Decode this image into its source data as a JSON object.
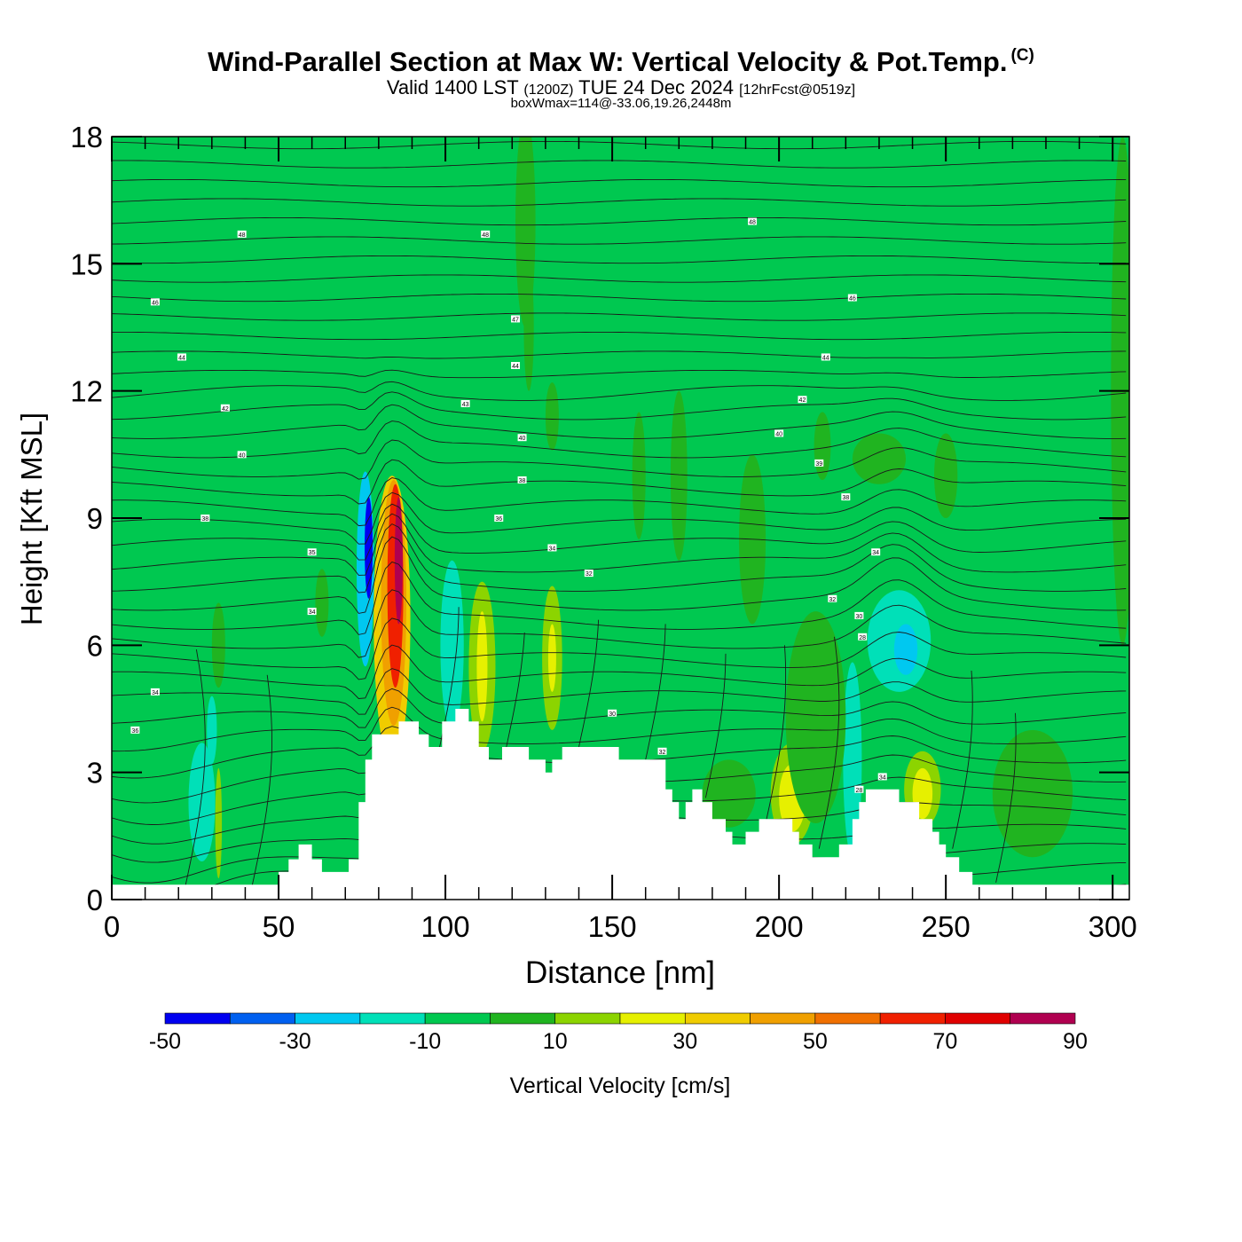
{
  "chart_data": {
    "type": "heatmap",
    "title": "Wind-Parallel Section at Max W: Vertical Velocity & Pot.Temp.",
    "copyright": "(C)",
    "subtitle_main": "Valid 1400 LST",
    "subtitle_utc": "(1200Z)",
    "subtitle_date": "TUE 24 Dec 2024",
    "subtitle_fcst": "[12hrFcst@0519z]",
    "subtitle2": "boxWmax=114@-33.06,19.26,2448m",
    "xlabel": "Distance [nm]",
    "ylabel": "Height [Kft MSL]",
    "xlim": [
      0,
      305
    ],
    "ylim": [
      0,
      18
    ],
    "xticks": [
      0,
      50,
      100,
      150,
      200,
      250,
      300
    ],
    "yticks": [
      0,
      3,
      6,
      9,
      12,
      15,
      18
    ],
    "colorbar_label": "Vertical Velocity [cm/s]",
    "colorbar_bounds": [
      -50,
      -40,
      -30,
      -20,
      -10,
      0,
      10,
      20,
      30,
      40,
      50,
      60,
      70,
      80,
      90
    ],
    "colorbar_ticks": [
      -50,
      -30,
      -10,
      10,
      30,
      50,
      70,
      90
    ],
    "colorbar_colors": [
      "#0000f0",
      "#0060f0",
      "#00c8f0",
      "#00e0b8",
      "#00c850",
      "#20b420",
      "#8cd400",
      "#e6f000",
      "#f0cc00",
      "#f0a000",
      "#f07000",
      "#f02000",
      "#e00000",
      "#b00050"
    ],
    "background_color": "#00c850",
    "terrain": [
      [
        0,
        0.35
      ],
      [
        50,
        0.35
      ],
      [
        50,
        0.65
      ],
      [
        53,
        0.65
      ],
      [
        53,
        0.95
      ],
      [
        56,
        0.95
      ],
      [
        56,
        1.3
      ],
      [
        60,
        1.3
      ],
      [
        60,
        0.95
      ],
      [
        63,
        0.95
      ],
      [
        63,
        0.65
      ],
      [
        71,
        0.65
      ],
      [
        71,
        0.95
      ],
      [
        74,
        0.95
      ],
      [
        74,
        2.3
      ],
      [
        76,
        2.3
      ],
      [
        76,
        3.3
      ],
      [
        78,
        3.3
      ],
      [
        78,
        3.9
      ],
      [
        86,
        3.9
      ],
      [
        86,
        4.2
      ],
      [
        92,
        4.2
      ],
      [
        92,
        3.9
      ],
      [
        95,
        3.9
      ],
      [
        95,
        3.6
      ],
      [
        99,
        3.6
      ],
      [
        99,
        4.2
      ],
      [
        103,
        4.2
      ],
      [
        103,
        4.5
      ],
      [
        107,
        4.5
      ],
      [
        107,
        4.2
      ],
      [
        110,
        4.2
      ],
      [
        110,
        3.6
      ],
      [
        113,
        3.6
      ],
      [
        113,
        3.3
      ],
      [
        117,
        3.3
      ],
      [
        117,
        3.6
      ],
      [
        125,
        3.6
      ],
      [
        125,
        3.3
      ],
      [
        130,
        3.3
      ],
      [
        130,
        3.0
      ],
      [
        132,
        3.0
      ],
      [
        132,
        3.3
      ],
      [
        135,
        3.3
      ],
      [
        135,
        3.6
      ],
      [
        152,
        3.6
      ],
      [
        152,
        3.3
      ],
      [
        166,
        3.3
      ],
      [
        166,
        2.6
      ],
      [
        168,
        2.6
      ],
      [
        168,
        2.3
      ],
      [
        170,
        2.3
      ],
      [
        170,
        1.9
      ],
      [
        172,
        1.9
      ],
      [
        172,
        2.3
      ],
      [
        174,
        2.3
      ],
      [
        174,
        2.6
      ],
      [
        177,
        2.6
      ],
      [
        177,
        2.3
      ],
      [
        180,
        2.3
      ],
      [
        180,
        1.9
      ],
      [
        184,
        1.9
      ],
      [
        184,
        1.6
      ],
      [
        186,
        1.6
      ],
      [
        186,
        1.3
      ],
      [
        190,
        1.3
      ],
      [
        190,
        1.6
      ],
      [
        194,
        1.6
      ],
      [
        194,
        1.9
      ],
      [
        204,
        1.9
      ],
      [
        204,
        1.6
      ],
      [
        206,
        1.6
      ],
      [
        206,
        1.3
      ],
      [
        210,
        1.3
      ],
      [
        210,
        1.0
      ],
      [
        218,
        1.0
      ],
      [
        218,
        1.3
      ],
      [
        222,
        1.3
      ],
      [
        222,
        1.9
      ],
      [
        224,
        1.9
      ],
      [
        224,
        2.3
      ],
      [
        226,
        2.3
      ],
      [
        226,
        2.6
      ],
      [
        236,
        2.6
      ],
      [
        236,
        2.3
      ],
      [
        242,
        2.3
      ],
      [
        242,
        1.9
      ],
      [
        246,
        1.9
      ],
      [
        246,
        1.6
      ],
      [
        248,
        1.6
      ],
      [
        248,
        1.3
      ],
      [
        250,
        1.3
      ],
      [
        250,
        1.0
      ],
      [
        254,
        1.0
      ],
      [
        254,
        0.65
      ],
      [
        258,
        0.65
      ],
      [
        258,
        0.35
      ],
      [
        260,
        0.35
      ],
      [
        260,
        0
      ],
      [
        0,
        0
      ]
    ],
    "wcells": [
      {
        "x": 84,
        "y": 6.6,
        "rx": 5.5,
        "ry": 3.4,
        "w": 35
      },
      {
        "x": 84.5,
        "y": 7.0,
        "rx": 3.8,
        "ry": 2.9,
        "w": 45
      },
      {
        "x": 85,
        "y": 7.4,
        "rx": 2.4,
        "ry": 2.4,
        "w": 65
      },
      {
        "x": 86,
        "y": 8.0,
        "rx": 1.2,
        "ry": 1.5,
        "w": 85
      },
      {
        "x": 76,
        "y": 7.8,
        "rx": 2.6,
        "ry": 2.3,
        "w": -25
      },
      {
        "x": 77,
        "y": 8.3,
        "rx": 1.2,
        "ry": 1.2,
        "w": -45
      },
      {
        "x": 111,
        "y": 5.5,
        "rx": 4.0,
        "ry": 2.0,
        "w": 15
      },
      {
        "x": 111,
        "y": 5.5,
        "rx": 1.6,
        "ry": 1.3,
        "w": 25
      },
      {
        "x": 102,
        "y": 6.0,
        "rx": 3.5,
        "ry": 2.0,
        "w": -15
      },
      {
        "x": 132,
        "y": 5.7,
        "rx": 3.0,
        "ry": 1.7,
        "w": 15
      },
      {
        "x": 132,
        "y": 5.7,
        "rx": 1.2,
        "ry": 0.8,
        "w": 25
      },
      {
        "x": 204,
        "y": 2.5,
        "rx": 6.5,
        "ry": 1.2,
        "w": 15
      },
      {
        "x": 204,
        "y": 2.4,
        "rx": 4.0,
        "ry": 0.8,
        "w": 25
      },
      {
        "x": 222,
        "y": 3.3,
        "rx": 2.8,
        "ry": 2.3,
        "w": -15
      },
      {
        "x": 236,
        "y": 6.1,
        "rx": 9.5,
        "ry": 1.2,
        "w": -15
      },
      {
        "x": 238,
        "y": 5.9,
        "rx": 3.5,
        "ry": 0.6,
        "w": -25
      },
      {
        "x": 243,
        "y": 2.6,
        "rx": 5.5,
        "ry": 0.9,
        "w": 15
      },
      {
        "x": 243,
        "y": 2.5,
        "rx": 3.0,
        "ry": 0.6,
        "w": 25
      },
      {
        "x": 27,
        "y": 2.3,
        "rx": 4.0,
        "ry": 1.4,
        "w": -15
      },
      {
        "x": 30,
        "y": 4.0,
        "rx": 1.5,
        "ry": 0.8,
        "w": -15
      },
      {
        "x": 32,
        "y": 1.8,
        "rx": 1.0,
        "ry": 1.3,
        "w": 15
      },
      {
        "x": 211,
        "y": 4.3,
        "rx": 9.0,
        "ry": 2.5,
        "w": 5
      },
      {
        "x": 124,
        "y": 16.0,
        "rx": 3.0,
        "ry": 2.5,
        "w": 5
      },
      {
        "x": 125,
        "y": 13.5,
        "rx": 1.5,
        "ry": 1.5,
        "w": 5
      },
      {
        "x": 213,
        "y": 10.7,
        "rx": 2.5,
        "ry": 0.8,
        "w": 5
      },
      {
        "x": 230,
        "y": 10.4,
        "rx": 8.0,
        "ry": 0.6,
        "w": 5
      },
      {
        "x": 250,
        "y": 10.0,
        "rx": 3.5,
        "ry": 1.0,
        "w": 5
      },
      {
        "x": 192,
        "y": 8.5,
        "rx": 4.0,
        "ry": 2.0,
        "w": 5
      },
      {
        "x": 303,
        "y": 12.0,
        "rx": 3.5,
        "ry": 6.0,
        "w": 5
      },
      {
        "x": 170,
        "y": 10.0,
        "rx": 2.5,
        "ry": 2.0,
        "w": 5
      },
      {
        "x": 158,
        "y": 10.0,
        "rx": 2.0,
        "ry": 1.5,
        "w": 5
      },
      {
        "x": 132,
        "y": 11.4,
        "rx": 2.0,
        "ry": 0.8,
        "w": 5
      },
      {
        "x": 276,
        "y": 2.5,
        "rx": 12.0,
        "ry": 1.5,
        "w": 5
      },
      {
        "x": 185,
        "y": 2.5,
        "rx": 8.0,
        "ry": 0.8,
        "w": 5
      },
      {
        "x": 63,
        "y": 7.0,
        "rx": 2.0,
        "ry": 0.8,
        "w": 5
      },
      {
        "x": 32,
        "y": 6.0,
        "rx": 2.0,
        "ry": 1.0,
        "w": 5
      }
    ],
    "contour_labels": [
      {
        "x": 39,
        "y": 15.7,
        "text": "48"
      },
      {
        "x": 112,
        "y": 15.7,
        "text": "48"
      },
      {
        "x": 192,
        "y": 16.0,
        "text": "48"
      },
      {
        "x": 13,
        "y": 14.1,
        "text": "46"
      },
      {
        "x": 121,
        "y": 13.7,
        "text": "47"
      },
      {
        "x": 222,
        "y": 14.2,
        "text": "46"
      },
      {
        "x": 21,
        "y": 12.8,
        "text": "44"
      },
      {
        "x": 121,
        "y": 12.6,
        "text": "44"
      },
      {
        "x": 214,
        "y": 12.8,
        "text": "44"
      },
      {
        "x": 34,
        "y": 11.6,
        "text": "42"
      },
      {
        "x": 106,
        "y": 11.7,
        "text": "43"
      },
      {
        "x": 207,
        "y": 11.8,
        "text": "42"
      },
      {
        "x": 39,
        "y": 10.5,
        "text": "40"
      },
      {
        "x": 123,
        "y": 10.9,
        "text": "40"
      },
      {
        "x": 200,
        "y": 11.0,
        "text": "40"
      },
      {
        "x": 212,
        "y": 10.3,
        "text": "39"
      },
      {
        "x": 123,
        "y": 9.9,
        "text": "38"
      },
      {
        "x": 28,
        "y": 9.0,
        "text": "38"
      },
      {
        "x": 116,
        "y": 9.0,
        "text": "36"
      },
      {
        "x": 220,
        "y": 9.5,
        "text": "38"
      },
      {
        "x": 60,
        "y": 8.2,
        "text": "35"
      },
      {
        "x": 132,
        "y": 8.3,
        "text": "34"
      },
      {
        "x": 143,
        "y": 7.7,
        "text": "32"
      },
      {
        "x": 229,
        "y": 8.2,
        "text": "34"
      },
      {
        "x": 60,
        "y": 6.8,
        "text": "34"
      },
      {
        "x": 216,
        "y": 7.1,
        "text": "32"
      },
      {
        "x": 224,
        "y": 6.7,
        "text": "30"
      },
      {
        "x": 225,
        "y": 6.2,
        "text": "28"
      },
      {
        "x": 13,
        "y": 4.9,
        "text": "34"
      },
      {
        "x": 7,
        "y": 4.0,
        "text": "36"
      },
      {
        "x": 150,
        "y": 4.4,
        "text": "30"
      },
      {
        "x": 165,
        "y": 3.5,
        "text": "32"
      },
      {
        "x": 231,
        "y": 2.9,
        "text": "34"
      },
      {
        "x": 224,
        "y": 2.6,
        "text": "28"
      }
    ]
  }
}
